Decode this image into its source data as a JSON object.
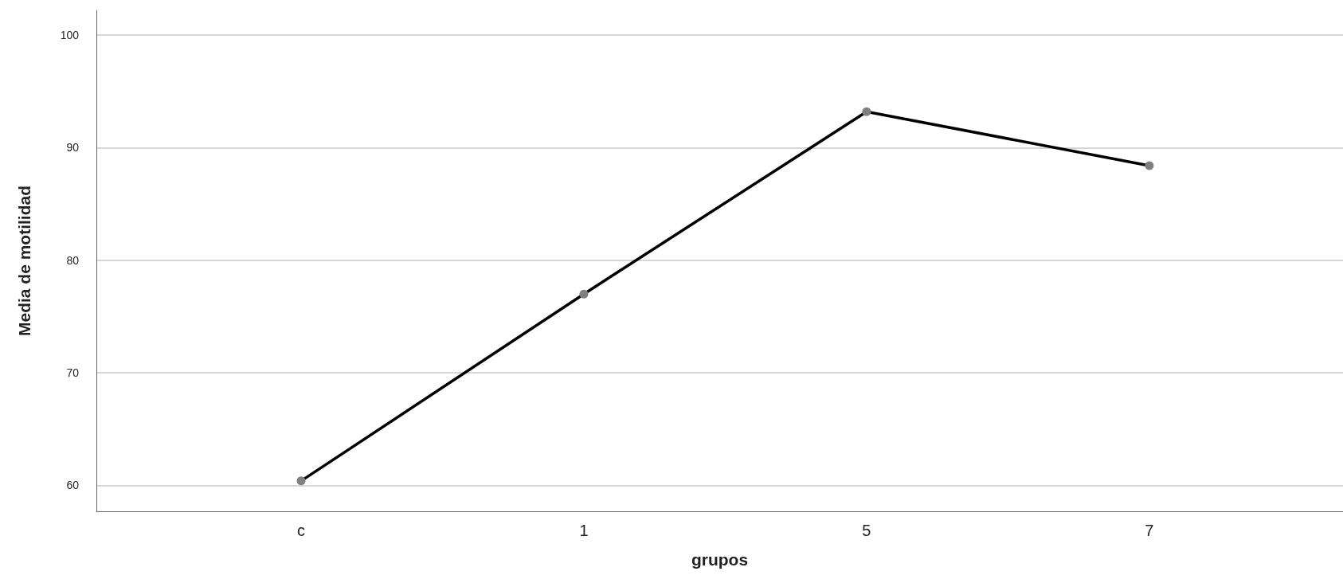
{
  "chart_data": {
    "type": "line",
    "xlabel": "grupos",
    "ylabel": "Media de motilidad",
    "categories": [
      "c",
      "1",
      "5",
      "7"
    ],
    "series": [
      {
        "color": "#000000",
        "values": [
          60.4,
          77.0,
          93.2,
          88.4
        ]
      }
    ],
    "ylim": [
      57.7,
      102.2
    ],
    "yticks": [
      60,
      70,
      80,
      90,
      100
    ],
    "grid": "y",
    "marker": "circle",
    "line_style": "solid"
  }
}
